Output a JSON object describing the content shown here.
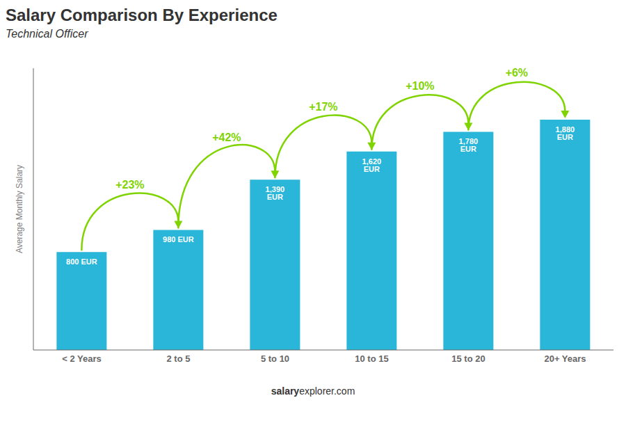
{
  "chart_data": {
    "type": "bar",
    "title": "Salary Comparison By Experience",
    "subtitle": "Technical Officer",
    "ylabel": "Average Monthly Salary",
    "footer": [
      "salary",
      "explorer.com"
    ],
    "categories": [
      "< 2 Years",
      "2 to 5",
      "5 to 10",
      "10 to 15",
      "15 to 20",
      "20+ Years"
    ],
    "values": [
      800,
      980,
      1390,
      1620,
      1780,
      1880
    ],
    "value_labels": [
      "800 EUR",
      "980 EUR",
      "1,390 EUR",
      "1,620 EUR",
      "1,780 EUR",
      "1,880 EUR"
    ],
    "data_labels": true,
    "color": "#29B6D8",
    "ylim": [
      0,
      2300
    ],
    "tick_labels": "x",
    "grid": false,
    "annotations": {
      "texts": [
        "+23%",
        "+42%",
        "+17%",
        "+10%",
        "+6%"
      ],
      "color": "#7FD400"
    }
  }
}
